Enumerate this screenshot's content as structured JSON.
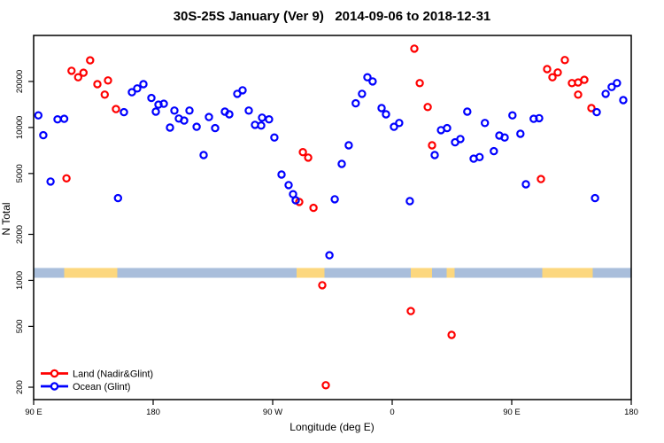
{
  "chart_data": {
    "type": "scatter",
    "title": "30S-25S January (Ver 9)   2014-09-06 to 2018-12-31",
    "xlabel": "Longitude (deg E)",
    "ylabel": "N Total",
    "x_axis": {
      "min": 90,
      "max": 540,
      "note": "longitude increases eastward and wraps: 90E-180-90W-0-90E-180",
      "ticks": [
        {
          "value": 90,
          "label": "90 E"
        },
        {
          "value": 180,
          "label": "180"
        },
        {
          "value": 270,
          "label": "90 W"
        },
        {
          "value": 360,
          "label": "0"
        },
        {
          "value": 450,
          "label": "90 E"
        },
        {
          "value": 540,
          "label": "180"
        }
      ]
    },
    "y_axis": {
      "min": 166,
      "max": 40000,
      "scale": "log",
      "ticks": [
        {
          "value": 200,
          "label": "200"
        },
        {
          "value": 500,
          "label": "500"
        },
        {
          "value": 1000,
          "label": "1000"
        },
        {
          "value": 2000,
          "label": "2000"
        },
        {
          "value": 5000,
          "label": "5000"
        },
        {
          "value": 10000,
          "label": "10000"
        },
        {
          "value": 20000,
          "label": "20000"
        }
      ]
    },
    "land_ocean_band": {
      "value_low": 1040,
      "value_high": 1205,
      "ocean_color": "#a9bedb",
      "land_color": "#fcd77e",
      "segments": [
        {
          "start": 90,
          "end": 113,
          "surface": "ocean"
        },
        {
          "start": 113,
          "end": 153,
          "surface": "land"
        },
        {
          "start": 153,
          "end": 288,
          "surface": "ocean"
        },
        {
          "start": 288,
          "end": 309,
          "surface": "land"
        },
        {
          "start": 309,
          "end": 374,
          "surface": "ocean"
        },
        {
          "start": 374,
          "end": 390,
          "surface": "land"
        },
        {
          "start": 390,
          "end": 401,
          "surface": "ocean"
        },
        {
          "start": 401,
          "end": 407,
          "surface": "land"
        },
        {
          "start": 407,
          "end": 473,
          "surface": "ocean"
        },
        {
          "start": 473,
          "end": 511,
          "surface": "land"
        },
        {
          "start": 511,
          "end": 540,
          "surface": "ocean"
        }
      ]
    },
    "legend": {
      "position": "bottom-left"
    },
    "series": [
      {
        "name": "Land (Nadir&Glint)",
        "color": "#ff0000",
        "points": [
          [
            118.5,
            23500
          ],
          [
            123.5,
            21300
          ],
          [
            127.5,
            22800
          ],
          [
            132.5,
            27500
          ],
          [
            138,
            19200
          ],
          [
            143.5,
            16400
          ],
          [
            146,
            20300
          ],
          [
            152,
            13200
          ],
          [
            114.7,
            4650
          ],
          [
            290,
            3260
          ],
          [
            292.7,
            6900
          ],
          [
            296.7,
            6350
          ],
          [
            300.7,
            2980
          ],
          [
            307.3,
            930
          ],
          [
            310,
            206
          ],
          [
            374,
            630
          ],
          [
            376.7,
            32800
          ],
          [
            380.7,
            19500
          ],
          [
            386.7,
            13600
          ],
          [
            390,
            7650
          ],
          [
            404.7,
            440
          ],
          [
            472,
            4600
          ],
          [
            476.7,
            24100
          ],
          [
            480.7,
            21300
          ],
          [
            484.7,
            22900
          ],
          [
            490,
            27600
          ],
          [
            495.3,
            19500
          ],
          [
            500,
            19700
          ],
          [
            500,
            16400
          ],
          [
            504.7,
            20500
          ],
          [
            510,
            13400
          ]
        ]
      },
      {
        "name": "Ocean (Glint)",
        "color": "#0000ff",
        "points": [
          [
            93.5,
            12000
          ],
          [
            97.3,
            8900
          ],
          [
            102.7,
            4430
          ],
          [
            108,
            11300
          ],
          [
            113,
            11400
          ],
          [
            153.5,
            3450
          ],
          [
            158,
            12600
          ],
          [
            164,
            17000
          ],
          [
            168,
            18000
          ],
          [
            172.7,
            19200
          ],
          [
            178.7,
            15600
          ],
          [
            182,
            12700
          ],
          [
            184,
            14100
          ],
          [
            188,
            14300
          ],
          [
            192.7,
            9980
          ],
          [
            196,
            12900
          ],
          [
            199.3,
            11440
          ],
          [
            203.3,
            11100
          ],
          [
            207.3,
            12900
          ],
          [
            212.7,
            10100
          ],
          [
            218,
            6600
          ],
          [
            222,
            11700
          ],
          [
            226.7,
            9900
          ],
          [
            234,
            12700
          ],
          [
            237.3,
            12200
          ],
          [
            243.3,
            16600
          ],
          [
            247.3,
            17500
          ],
          [
            252,
            12900
          ],
          [
            256.7,
            10400
          ],
          [
            261.3,
            10300
          ],
          [
            262,
            11600
          ],
          [
            267.3,
            11300
          ],
          [
            271.3,
            8600
          ],
          [
            276.7,
            4920
          ],
          [
            282,
            4200
          ],
          [
            285.3,
            3660
          ],
          [
            287.3,
            3340
          ],
          [
            312.7,
            1460
          ],
          [
            316.7,
            3390
          ],
          [
            322,
            5780
          ],
          [
            327.3,
            7650
          ],
          [
            332.5,
            14400
          ],
          [
            337.3,
            16600
          ],
          [
            341.3,
            21300
          ],
          [
            345.3,
            20000
          ],
          [
            352,
            13400
          ],
          [
            355.3,
            12200
          ],
          [
            361.3,
            10100
          ],
          [
            365.3,
            10700
          ],
          [
            373.3,
            3300
          ],
          [
            392,
            6600
          ],
          [
            396.7,
            9600
          ],
          [
            401.3,
            9900
          ],
          [
            407.3,
            8000
          ],
          [
            411.3,
            8400
          ],
          [
            416.5,
            12700
          ],
          [
            421.3,
            6250
          ],
          [
            425.8,
            6400
          ],
          [
            429.8,
            10700
          ],
          [
            436.5,
            7000
          ],
          [
            440.7,
            8860
          ],
          [
            444.7,
            8600
          ],
          [
            450.5,
            12000
          ],
          [
            456.5,
            9100
          ],
          [
            460.7,
            4250
          ],
          [
            466.5,
            11400
          ],
          [
            470.7,
            11500
          ],
          [
            512.7,
            3450
          ],
          [
            514,
            12600
          ],
          [
            520.7,
            16600
          ],
          [
            525.3,
            18400
          ],
          [
            529.3,
            19500
          ],
          [
            534,
            15100
          ]
        ]
      }
    ]
  }
}
